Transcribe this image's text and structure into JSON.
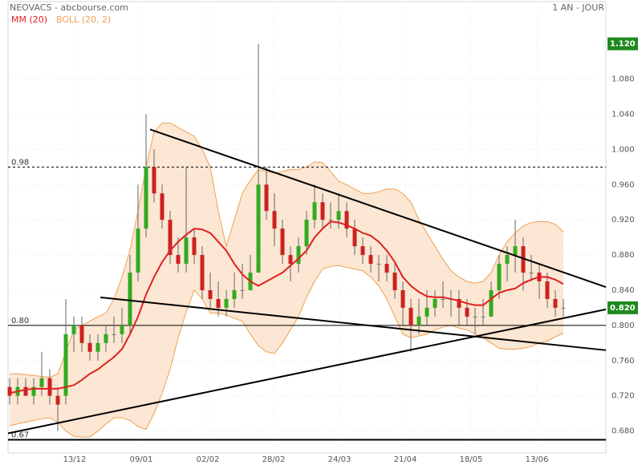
{
  "chart_data": {
    "type": "candlestick",
    "title": "NEOVACS - abcbourse.com",
    "period": "1 AN - JOUR",
    "x": [
      0,
      1,
      2,
      3,
      4,
      5,
      6,
      7,
      8,
      9,
      10,
      11,
      12,
      13,
      14,
      15,
      16,
      17,
      18,
      19,
      20,
      21,
      22,
      23,
      24,
      25,
      26,
      27,
      28,
      29,
      30,
      31,
      32,
      33,
      34,
      35,
      36,
      37,
      38,
      39,
      40,
      41,
      42,
      43,
      44,
      45,
      46,
      47,
      48,
      49,
      50,
      51,
      52,
      53,
      54,
      55,
      56,
      57,
      58,
      59,
      60,
      61,
      62,
      63,
      64,
      65,
      66,
      67,
      68,
      69
    ],
    "xlim": [
      -0.2,
      74.3
    ],
    "xticks": [
      {
        "value": 8.1,
        "label": "13/12"
      },
      {
        "value": 16.4,
        "label": "09/01"
      },
      {
        "value": 24.7,
        "label": "02/02"
      },
      {
        "value": 32.9,
        "label": "28/02"
      },
      {
        "value": 41.1,
        "label": "24/03"
      },
      {
        "value": 49.3,
        "label": "21/04"
      },
      {
        "value": 57.5,
        "label": "18/05"
      },
      {
        "value": 65.7,
        "label": "13/06"
      }
    ],
    "ylim": [
      0.655,
      1.168
    ],
    "yticks": [
      {
        "value": 0.68,
        "label": "0.680"
      },
      {
        "value": 0.72,
        "label": "0.720"
      },
      {
        "value": 0.76,
        "label": "0.760"
      },
      {
        "value": 0.8,
        "label": "0.800"
      },
      {
        "value": 0.84,
        "label": "0.840"
      },
      {
        "value": 0.88,
        "label": "0.880"
      },
      {
        "value": 0.92,
        "label": "0.920"
      },
      {
        "value": 0.96,
        "label": "0.960"
      },
      {
        "value": 1.0,
        "label": "1.000"
      },
      {
        "value": 1.04,
        "label": "1.040"
      },
      {
        "value": 1.08,
        "label": "1.080"
      }
    ],
    "grid": true,
    "up_color": "#33aa22",
    "down_color": "#cc2222",
    "open": [
      0.73,
      0.72,
      0.73,
      0.72,
      0.73,
      0.74,
      0.72,
      0.72,
      0.79,
      0.8,
      0.78,
      0.77,
      0.78,
      0.79,
      0.79,
      0.8,
      0.86,
      0.91,
      0.98,
      0.95,
      0.92,
      0.88,
      0.87,
      0.9,
      0.88,
      0.84,
      0.83,
      0.82,
      0.83,
      0.84,
      0.84,
      0.86,
      0.96,
      0.93,
      0.91,
      0.88,
      0.87,
      0.89,
      0.92,
      0.94,
      0.92,
      0.92,
      0.93,
      0.91,
      0.89,
      0.88,
      0.87,
      0.87,
      0.86,
      0.84,
      0.82,
      0.8,
      0.81,
      0.82,
      0.83,
      0.83,
      0.83,
      0.82,
      0.81,
      0.81,
      0.81,
      0.84,
      0.87,
      0.88,
      0.89,
      0.86,
      0.86,
      0.85,
      0.83,
      0.82
    ],
    "high": [
      0.74,
      0.74,
      0.74,
      0.74,
      0.77,
      0.75,
      0.73,
      0.83,
      0.81,
      0.81,
      0.79,
      0.79,
      0.8,
      0.81,
      0.82,
      0.88,
      0.96,
      1.04,
      1.0,
      0.96,
      0.93,
      0.9,
      0.98,
      0.91,
      0.89,
      0.86,
      0.85,
      0.84,
      0.86,
      0.87,
      0.88,
      1.12,
      0.98,
      0.95,
      0.92,
      0.89,
      0.9,
      0.93,
      0.96,
      0.95,
      0.94,
      0.95,
      0.94,
      0.92,
      0.9,
      0.89,
      0.88,
      0.88,
      0.87,
      0.85,
      0.83,
      0.83,
      0.84,
      0.84,
      0.85,
      0.84,
      0.84,
      0.83,
      0.82,
      0.83,
      0.85,
      0.88,
      0.89,
      0.92,
      0.9,
      0.88,
      0.87,
      0.86,
      0.84,
      0.83
    ],
    "low": [
      0.71,
      0.71,
      0.72,
      0.71,
      0.72,
      0.71,
      0.68,
      0.71,
      0.77,
      0.77,
      0.76,
      0.76,
      0.77,
      0.78,
      0.78,
      0.79,
      0.85,
      0.9,
      0.94,
      0.91,
      0.87,
      0.86,
      0.86,
      0.87,
      0.83,
      0.82,
      0.81,
      0.81,
      0.82,
      0.83,
      0.84,
      0.86,
      0.92,
      0.89,
      0.87,
      0.85,
      0.86,
      0.88,
      0.91,
      0.91,
      0.91,
      0.91,
      0.9,
      0.88,
      0.87,
      0.86,
      0.85,
      0.85,
      0.83,
      0.8,
      0.77,
      0.79,
      0.8,
      0.81,
      0.82,
      0.81,
      0.8,
      0.8,
      0.79,
      0.8,
      0.81,
      0.83,
      0.85,
      0.86,
      0.84,
      0.85,
      0.83,
      0.82,
      0.81,
      0.81
    ],
    "close": [
      0.72,
      0.73,
      0.72,
      0.73,
      0.74,
      0.72,
      0.71,
      0.79,
      0.8,
      0.78,
      0.77,
      0.78,
      0.79,
      0.79,
      0.8,
      0.86,
      0.91,
      0.98,
      0.95,
      0.92,
      0.88,
      0.87,
      0.9,
      0.88,
      0.84,
      0.83,
      0.82,
      0.83,
      0.84,
      0.84,
      0.86,
      0.96,
      0.93,
      0.91,
      0.88,
      0.87,
      0.89,
      0.92,
      0.94,
      0.92,
      0.92,
      0.93,
      0.91,
      0.89,
      0.88,
      0.87,
      0.87,
      0.86,
      0.84,
      0.82,
      0.8,
      0.81,
      0.82,
      0.83,
      0.83,
      0.83,
      0.82,
      0.81,
      0.81,
      0.81,
      0.84,
      0.87,
      0.88,
      0.89,
      0.86,
      0.86,
      0.85,
      0.83,
      0.82,
      0.82
    ],
    "series": [
      {
        "name": "MM (20)",
        "color": "#e02020",
        "values": [
          0.723,
          0.725,
          0.727,
          0.728,
          0.728,
          0.728,
          0.728,
          0.73,
          0.732,
          0.738,
          0.745,
          0.75,
          0.757,
          0.764,
          0.773,
          0.79,
          0.81,
          0.835,
          0.855,
          0.872,
          0.885,
          0.895,
          0.903,
          0.91,
          0.909,
          0.905,
          0.895,
          0.885,
          0.87,
          0.858,
          0.85,
          0.845,
          0.85,
          0.855,
          0.86,
          0.868,
          0.876,
          0.885,
          0.9,
          0.91,
          0.918,
          0.917,
          0.914,
          0.91,
          0.905,
          0.902,
          0.895,
          0.885,
          0.872,
          0.855,
          0.845,
          0.838,
          0.833,
          0.832,
          0.832,
          0.83,
          0.828,
          0.825,
          0.823,
          0.823,
          0.83,
          0.837,
          0.84,
          0.842,
          0.848,
          0.852,
          0.855,
          0.855,
          0.852,
          0.847
        ]
      },
      {
        "name": "BOLL (20, 2)",
        "color": "#f0a050",
        "upper": [
          0.745,
          0.745,
          0.744,
          0.743,
          0.742,
          0.741,
          0.745,
          0.77,
          0.795,
          0.8,
          0.805,
          0.81,
          0.814,
          0.83,
          0.855,
          0.886,
          0.93,
          0.98,
          1.02,
          1.03,
          1.03,
          1.025,
          1.02,
          1.015,
          1.0,
          0.98,
          0.93,
          0.89,
          0.92,
          0.95,
          0.965,
          0.977,
          0.975,
          0.973,
          0.975,
          0.977,
          0.977,
          0.98,
          0.986,
          0.985,
          0.975,
          0.964,
          0.96,
          0.955,
          0.95,
          0.95,
          0.952,
          0.955,
          0.955,
          0.95,
          0.94,
          0.92,
          0.905,
          0.89,
          0.875,
          0.862,
          0.855,
          0.85,
          0.848,
          0.85,
          0.86,
          0.88,
          0.895,
          0.905,
          0.913,
          0.917,
          0.918,
          0.918,
          0.915,
          0.906
        ],
        "lower": [
          0.686,
          0.688,
          0.69,
          0.692,
          0.694,
          0.695,
          0.69,
          0.68,
          0.674,
          0.673,
          0.673,
          0.68,
          0.688,
          0.695,
          0.695,
          0.692,
          0.685,
          0.682,
          0.7,
          0.723,
          0.75,
          0.786,
          0.815,
          0.84,
          0.83,
          0.814,
          0.814,
          0.812,
          0.808,
          0.805,
          0.79,
          0.777,
          0.77,
          0.768,
          0.78,
          0.795,
          0.81,
          0.832,
          0.85,
          0.864,
          0.867,
          0.868,
          0.866,
          0.864,
          0.862,
          0.855,
          0.845,
          0.83,
          0.81,
          0.79,
          0.786,
          0.788,
          0.79,
          0.795,
          0.798,
          0.8,
          0.797,
          0.795,
          0.79,
          0.786,
          0.78,
          0.774,
          0.773,
          0.773,
          0.774,
          0.776,
          0.78,
          0.782,
          0.787,
          0.791
        ]
      }
    ],
    "hlines": [
      {
        "value": 0.98,
        "label": "0.98",
        "style": "dashed"
      },
      {
        "value": 0.8,
        "label": "0.80",
        "style": "solid"
      },
      {
        "value": 0.67,
        "label": "0.67",
        "style": "thick"
      }
    ],
    "trendlines": [
      {
        "x": [
          17.5,
          74.3
        ],
        "y": [
          1.0227,
          0.8436
        ]
      },
      {
        "x": [
          11.3,
          74.3
        ],
        "y": [
          0.8318,
          0.7718
        ]
      },
      {
        "x": [
          -0.2,
          74.3
        ],
        "y": [
          0.6773,
          0.8182
        ]
      }
    ],
    "price_markers": [
      {
        "value": 1.12,
        "label": "1.120",
        "color": "#1f8a1f"
      },
      {
        "value": 0.82,
        "label": "0.820",
        "color": "#1f8a1f"
      }
    ]
  }
}
